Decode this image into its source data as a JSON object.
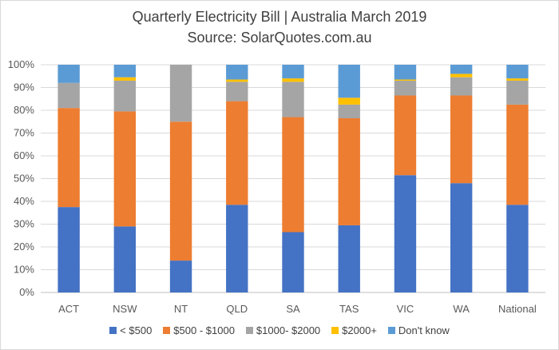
{
  "chart_data": {
    "type": "bar",
    "stacked": true,
    "title": "Quarterly Electricity Bill | Australia March 2019",
    "subtitle": "Source: SolarQuotes.com.au",
    "categories": [
      "ACT",
      "NSW",
      "NT",
      "QLD",
      "SA",
      "TAS",
      "VIC",
      "WA",
      "National"
    ],
    "y_ticks": [
      "0%",
      "10%",
      "20%",
      "30%",
      "40%",
      "50%",
      "60%",
      "70%",
      "80%",
      "90%",
      "100%"
    ],
    "ylim": [
      0,
      100
    ],
    "grid": true,
    "legend_position": "bottom",
    "series": [
      {
        "name": "< $500",
        "color": "#4472C4",
        "values": [
          37.5,
          29,
          14,
          38.5,
          26.5,
          29.5,
          51.5,
          48,
          38.5
        ]
      },
      {
        "name": "$500 - $1000",
        "color": "#ED7D31",
        "values": [
          43.5,
          50.5,
          61,
          45.5,
          50.5,
          47,
          35,
          38.5,
          44
        ]
      },
      {
        "name": "$1000- $2000",
        "color": "#A5A5A5",
        "values": [
          11,
          13.5,
          25,
          8.5,
          15.5,
          6,
          6.5,
          8,
          10.5
        ]
      },
      {
        "name": "$2000+",
        "color": "#FFC000",
        "values": [
          0,
          1.5,
          0,
          1,
          1.5,
          3,
          0.5,
          1.5,
          1
        ]
      },
      {
        "name": "Don't know",
        "color": "#5B9BD5",
        "values": [
          8,
          5.5,
          0,
          6.5,
          6,
          14.5,
          6.5,
          4,
          6
        ]
      }
    ]
  }
}
